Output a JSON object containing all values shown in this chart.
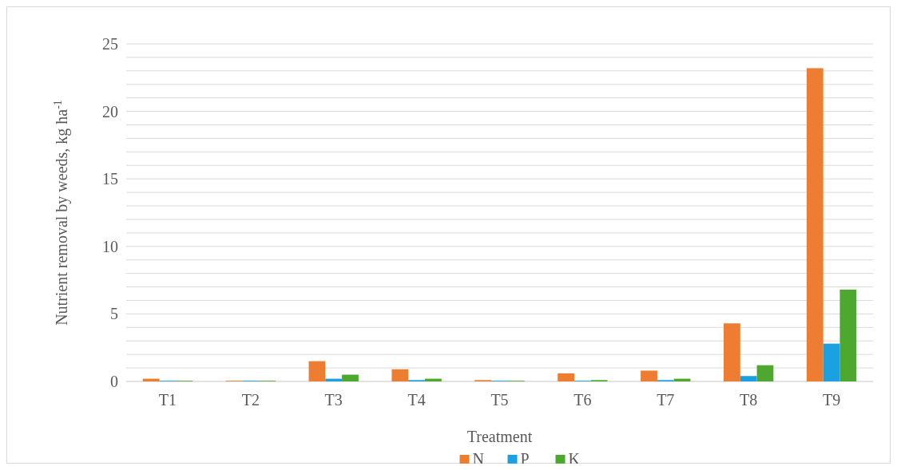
{
  "chart_data": {
    "type": "bar",
    "xlabel": "Treatment",
    "ylabel": "Nutrient removal by weeds, kg ha$^{-1}$",
    "categories": [
      "T1",
      "T2",
      "T3",
      "T4",
      "T5",
      "T6",
      "T7",
      "T8",
      "T9"
    ],
    "series": [
      {
        "name": "N",
        "color": "#ed7d31",
        "values": [
          0.2,
          0.05,
          1.5,
          0.9,
          0.1,
          0.6,
          0.8,
          4.3,
          23.2
        ]
      },
      {
        "name": "P",
        "color": "#1ba1e2",
        "values": [
          0.05,
          0.05,
          0.2,
          0.1,
          0.05,
          0.05,
          0.1,
          0.4,
          2.8
        ]
      },
      {
        "name": "K",
        "color": "#4ea72e",
        "values": [
          0.05,
          0.05,
          0.5,
          0.2,
          0.05,
          0.1,
          0.2,
          1.2,
          6.8
        ]
      }
    ],
    "ylim": [
      0,
      25
    ],
    "yticks": [
      0,
      {
        "value": 1,
        "label": null
      },
      {
        "value": 2,
        "label": null
      },
      {
        "value": 3,
        "label": null
      },
      {
        "value": 4,
        "label": null
      },
      5,
      {
        "value": 6,
        "label": null
      },
      {
        "value": 7,
        "label": null
      },
      {
        "value": 8,
        "label": null
      },
      {
        "value": 9,
        "label": null
      },
      10,
      {
        "value": 11,
        "label": null
      },
      {
        "value": 12,
        "label": null
      },
      {
        "value": 13,
        "label": null
      },
      {
        "value": 14,
        "label": null
      },
      15,
      {
        "value": 16,
        "label": null
      },
      {
        "value": 17,
        "label": null
      },
      {
        "value": 18,
        "label": null
      },
      {
        "value": 19,
        "label": null
      },
      20,
      {
        "value": 21,
        "label": null
      },
      {
        "value": 22,
        "label": null
      },
      {
        "value": 23,
        "label": null
      },
      {
        "value": 24,
        "label": null
      },
      25
    ],
    "grid": "y",
    "legend": "bottom"
  }
}
